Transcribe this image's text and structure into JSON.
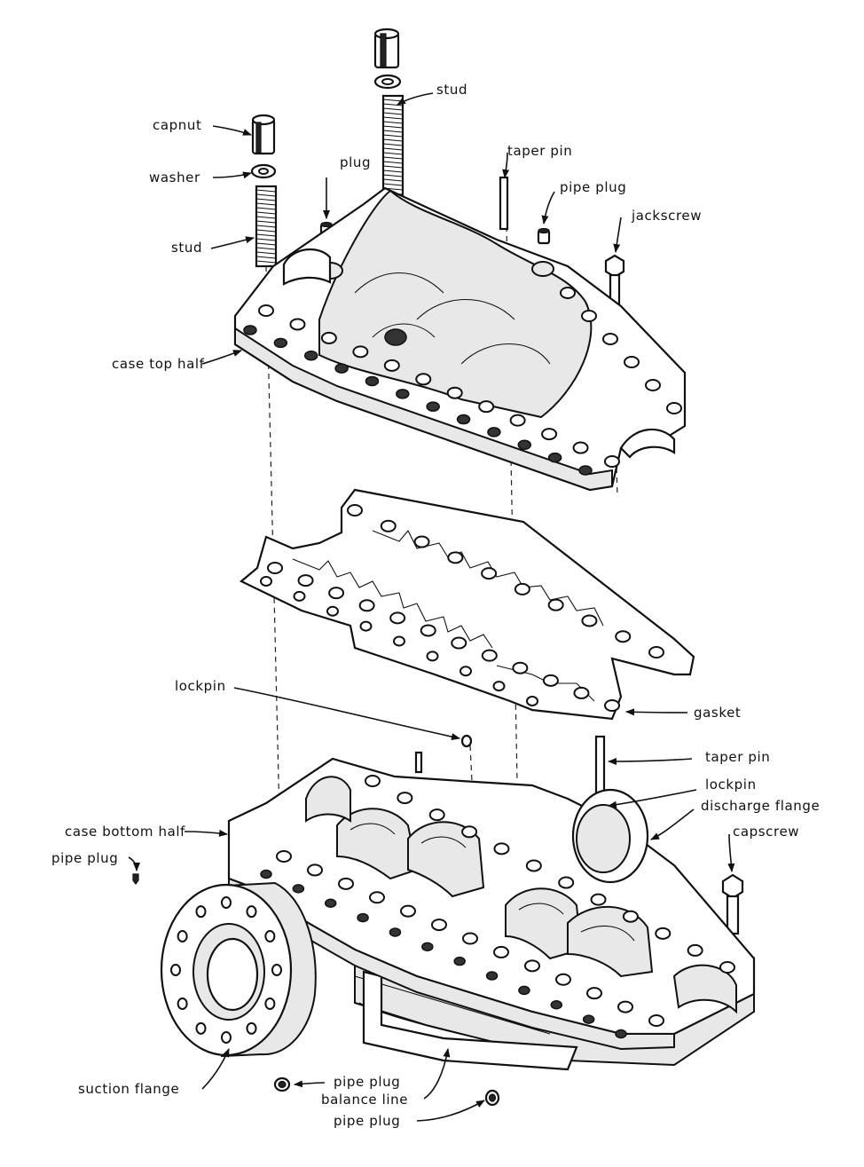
{
  "labels": {
    "stud_top": "stud",
    "capnut": "capnut",
    "washer": "washer",
    "stud_left": "stud",
    "plug": "plug",
    "taper_pin_top": "taper pin",
    "pipe_plug_top": "pipe plug",
    "jackscrew": "jackscrew",
    "case_top_half": "case top half",
    "lockpin_mid": "lockpin",
    "gasket": "gasket",
    "taper_pin_right": "taper pin",
    "lockpin_right": "lockpin",
    "discharge_flange": "discharge flange",
    "capscrew": "capscrew",
    "case_bottom_half": "case bottom half",
    "pipe_plug_left": "pipe plug",
    "suction_flange": "suction flange",
    "pipe_plug_bottom1": "pipe plug",
    "balance_line": "balance line",
    "pipe_plug_bottom2": "pipe plug"
  }
}
